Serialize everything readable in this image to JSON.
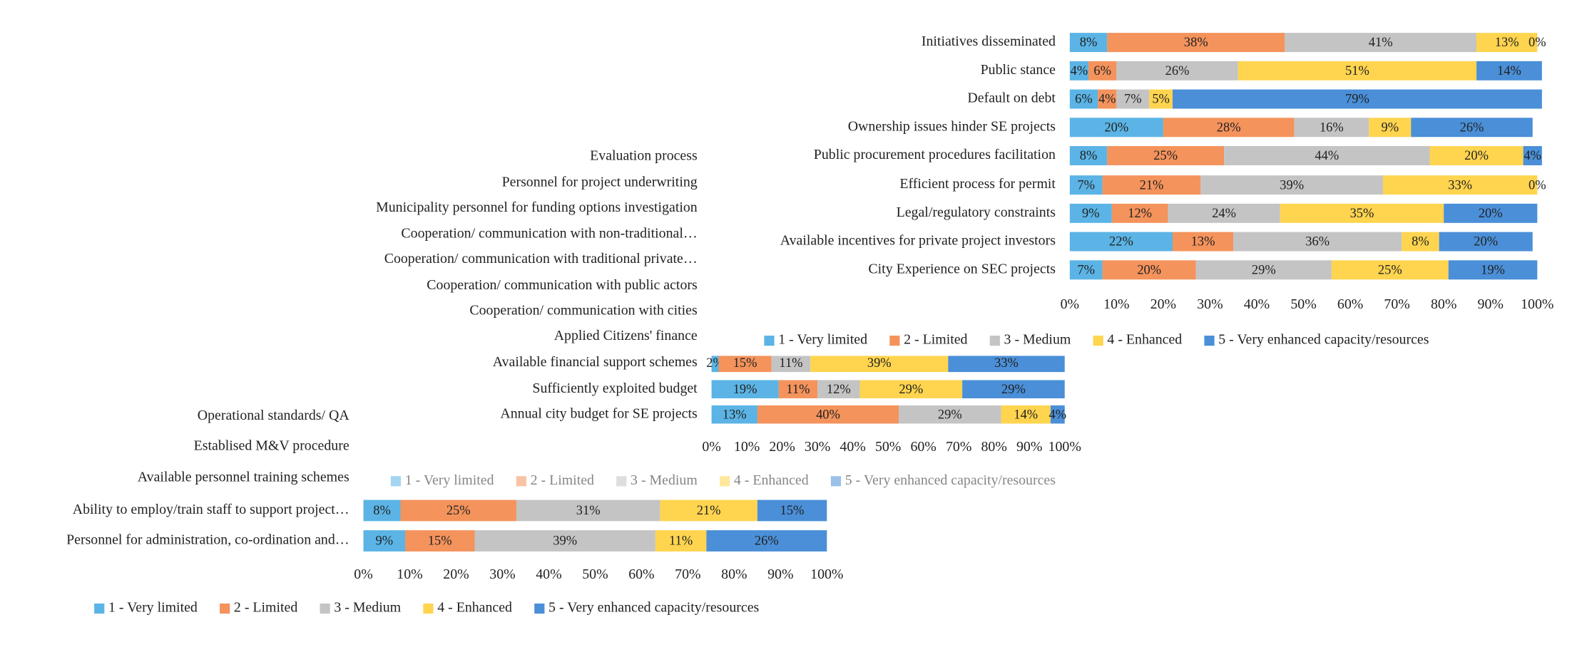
{
  "chart_data": [
    {
      "type": "bar",
      "orientation": "horizontal",
      "stacked": true,
      "categories": [
        "Initiatives disseminated",
        "Public stance",
        "Default on debt",
        "Ownership issues hinder SE projects",
        "Public procurement procedures facilitation",
        "Efficient process for permit",
        "Legal/regulatory constraints",
        "Available incentives for private project investors",
        "City Experience on SEC projects"
      ],
      "series": [
        {
          "name": "1 - Very limited",
          "color": "#5bb4e5",
          "values": [
            8,
            4,
            6,
            20,
            8,
            7,
            9,
            22,
            7
          ],
          "value_labels": [
            "8%",
            "4%",
            "6%",
            "20%",
            "8%",
            "7%",
            "9%",
            "22%",
            "7%"
          ]
        },
        {
          "name": "2 - Limited",
          "color": "#f4935c",
          "values": [
            38,
            6,
            4,
            28,
            25,
            21,
            12,
            13,
            20
          ],
          "value_labels": [
            "38%",
            "6%",
            "4%",
            "28%",
            "25%",
            "21%",
            "12%",
            "13%",
            "20%"
          ]
        },
        {
          "name": "3 - Medium",
          "color": "#c4c4c4",
          "values": [
            41,
            26,
            7,
            16,
            44,
            39,
            24,
            36,
            29
          ],
          "value_labels": [
            "41%",
            "26%",
            "7%",
            "16%",
            "44%",
            "39%",
            "24%",
            "36%",
            "29%"
          ]
        },
        {
          "name": "4 - Enhanced",
          "color": "#ffd44f",
          "values": [
            13,
            51,
            5,
            9,
            20,
            33,
            35,
            8,
            25
          ],
          "value_labels": [
            "13%",
            "51%",
            "5%",
            "9%",
            "20%",
            "33%",
            "35%",
            "8%",
            "25%"
          ]
        },
        {
          "name": "5 - Very enhanced capacity/resources",
          "color": "#4a8fd8",
          "values": [
            0,
            14,
            79,
            26,
            4,
            0,
            20,
            20,
            19
          ],
          "value_labels": [
            "0%",
            "14%",
            "79%",
            "26%",
            "4%",
            "0%",
            "20%",
            "20%",
            "19%"
          ]
        }
      ],
      "xlim": [
        0,
        100
      ],
      "xticks": [
        {
          "value": 0,
          "label": "0%"
        },
        {
          "value": 10,
          "label": "10%"
        },
        {
          "value": 20,
          "label": "20%"
        },
        {
          "value": 30,
          "label": "30%"
        },
        {
          "value": 40,
          "label": "40%"
        },
        {
          "value": 50,
          "label": "50%"
        },
        {
          "value": 60,
          "label": "60%"
        },
        {
          "value": 70,
          "label": "70%"
        },
        {
          "value": 80,
          "label": "80%"
        },
        {
          "value": 90,
          "label": "90%"
        },
        {
          "value": 100,
          "label": "100%"
        }
      ]
    },
    {
      "type": "bar",
      "orientation": "horizontal",
      "stacked": true,
      "categories": [
        "Evaluation process",
        "Personnel for project underwriting",
        "Municipality personnel for funding options investigation",
        "Cooperation/ communication with non-traditional…",
        "Cooperation/ communication with traditional private…",
        "Cooperation/ communication with public actors",
        "Cooperation/ communication with cities",
        "Applied Citizens' finance",
        "Available financial support schemes",
        "Sufficiently exploited budget",
        "Annual city budget for SE projects"
      ],
      "series": [
        {
          "name": "1 - Very limited",
          "color": "#5bb4e5",
          "values": [
            null,
            null,
            null,
            null,
            null,
            null,
            null,
            null,
            2,
            19,
            13
          ],
          "value_labels": [
            null,
            null,
            null,
            null,
            null,
            null,
            null,
            null,
            "2%",
            "19%",
            "13%"
          ]
        },
        {
          "name": "2 - Limited",
          "color": "#f4935c",
          "values": [
            null,
            null,
            null,
            null,
            null,
            null,
            null,
            null,
            15,
            11,
            40
          ],
          "value_labels": [
            null,
            null,
            null,
            null,
            null,
            null,
            null,
            null,
            "15%",
            "11%",
            "40%"
          ]
        },
        {
          "name": "3 - Medium",
          "color": "#c4c4c4",
          "values": [
            null,
            null,
            null,
            null,
            null,
            null,
            null,
            null,
            11,
            12,
            29
          ],
          "value_labels": [
            null,
            null,
            null,
            null,
            null,
            null,
            null,
            null,
            "11%",
            "12%",
            "29%"
          ]
        },
        {
          "name": "4 - Enhanced",
          "color": "#ffd44f",
          "values": [
            null,
            null,
            null,
            null,
            null,
            null,
            null,
            null,
            39,
            29,
            14
          ],
          "value_labels": [
            null,
            null,
            null,
            null,
            null,
            null,
            null,
            null,
            "39%",
            "29%",
            "14%"
          ]
        },
        {
          "name": "5 - Very enhanced capacity/resources",
          "color": "#4a8fd8",
          "values": [
            null,
            null,
            null,
            null,
            null,
            null,
            null,
            null,
            33,
            29,
            4
          ],
          "value_labels": [
            null,
            null,
            null,
            null,
            null,
            null,
            null,
            null,
            "33%",
            "29%",
            "4%"
          ]
        }
      ],
      "xlim": [
        0,
        100
      ],
      "xticks": [
        {
          "value": 0,
          "label": "0%"
        },
        {
          "value": 10,
          "label": "10%"
        },
        {
          "value": 20,
          "label": "20%"
        },
        {
          "value": 30,
          "label": "30%"
        },
        {
          "value": 40,
          "label": "40%"
        },
        {
          "value": 50,
          "label": "50%"
        },
        {
          "value": 60,
          "label": "60%"
        },
        {
          "value": 70,
          "label": "70%"
        },
        {
          "value": 80,
          "label": "80%"
        },
        {
          "value": 90,
          "label": "90%"
        },
        {
          "value": 100,
          "label": "100%"
        }
      ]
    },
    {
      "type": "bar",
      "orientation": "horizontal",
      "stacked": true,
      "categories": [
        "Operational standards/ QA",
        "Establised M&V procedure",
        "Available personnel training schemes",
        "Ability to employ/train  staff to support project…",
        "Personnel for administration, co-ordination and…"
      ],
      "series": [
        {
          "name": "1 - Very limited",
          "color": "#5bb4e5",
          "values": [
            null,
            null,
            null,
            8,
            9
          ],
          "value_labels": [
            null,
            null,
            null,
            "8%",
            "9%"
          ]
        },
        {
          "name": "2 - Limited",
          "color": "#f4935c",
          "values": [
            null,
            null,
            null,
            25,
            15
          ],
          "value_labels": [
            null,
            null,
            null,
            "25%",
            "15%"
          ]
        },
        {
          "name": "3 - Medium",
          "color": "#c4c4c4",
          "values": [
            null,
            null,
            null,
            31,
            39
          ],
          "value_labels": [
            null,
            null,
            null,
            "31%",
            "39%"
          ]
        },
        {
          "name": "4 - Enhanced",
          "color": "#ffd44f",
          "values": [
            null,
            null,
            null,
            21,
            11
          ],
          "value_labels": [
            null,
            null,
            null,
            "21%",
            "11%"
          ]
        },
        {
          "name": "5 - Very enhanced capacity/resources",
          "color": "#4a8fd8",
          "values": [
            null,
            null,
            null,
            15,
            26
          ],
          "value_labels": [
            null,
            null,
            null,
            "15%",
            "26%"
          ]
        }
      ],
      "xlim": [
        0,
        100
      ],
      "xticks": [
        {
          "value": 0,
          "label": "0%"
        },
        {
          "value": 10,
          "label": "10%"
        },
        {
          "value": 20,
          "label": "20%"
        },
        {
          "value": 30,
          "label": "30%"
        },
        {
          "value": 40,
          "label": "40%"
        },
        {
          "value": 50,
          "label": "50%"
        },
        {
          "value": 60,
          "label": "60%"
        },
        {
          "value": 70,
          "label": "70%"
        },
        {
          "value": 80,
          "label": "80%"
        },
        {
          "value": 90,
          "label": "90%"
        },
        {
          "value": 100,
          "label": "100%"
        }
      ]
    }
  ]
}
